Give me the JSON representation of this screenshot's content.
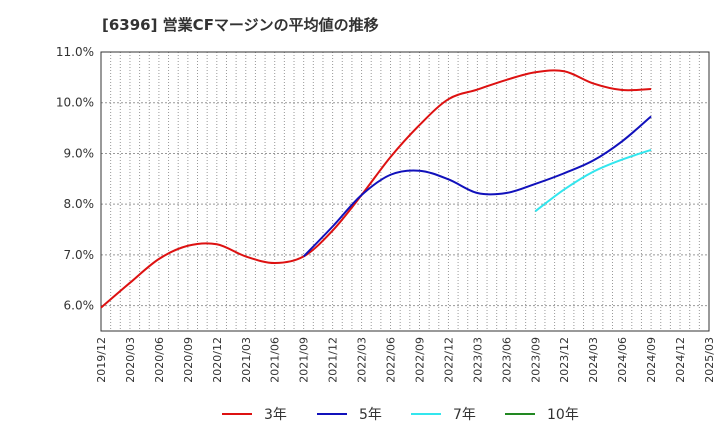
{
  "chart_data": {
    "type": "line",
    "title": "[6396]  営業CFマージンの平均値の推移",
    "xlabel": "",
    "ylabel": "",
    "x": [
      "2019/12",
      "2020/03",
      "2020/06",
      "2020/09",
      "2020/12",
      "2021/03",
      "2021/06",
      "2021/09",
      "2021/12",
      "2022/03",
      "2022/06",
      "2022/09",
      "2022/12",
      "2023/03",
      "2023/06",
      "2023/09",
      "2023/12",
      "2024/03",
      "2024/06",
      "2024/09",
      "2024/12",
      "2025/03"
    ],
    "yticks": [
      "6.0%",
      "7.0%",
      "8.0%",
      "9.0%",
      "10.0%",
      "11.0%"
    ],
    "ylim": [
      5.5,
      11.0
    ],
    "grid": true,
    "legend_position": "bottom-center",
    "series": [
      {
        "name": "3年",
        "color": "#dd1111",
        "values": [
          5.96,
          6.45,
          6.92,
          7.18,
          7.21,
          6.97,
          6.84,
          6.97,
          7.48,
          8.18,
          8.93,
          9.56,
          10.07,
          10.26,
          10.45,
          10.6,
          10.62,
          10.38,
          10.25,
          10.27,
          null,
          null
        ]
      },
      {
        "name": "5年",
        "color": "#1111bb",
        "values": [
          null,
          null,
          null,
          null,
          null,
          null,
          null,
          6.97,
          7.56,
          8.18,
          8.58,
          8.66,
          8.49,
          8.22,
          8.22,
          8.4,
          8.61,
          8.86,
          9.24,
          9.73,
          null,
          null
        ]
      },
      {
        "name": "7年",
        "color": "#33e6ee",
        "values": [
          null,
          null,
          null,
          null,
          null,
          null,
          null,
          null,
          null,
          null,
          null,
          null,
          null,
          null,
          null,
          7.86,
          8.29,
          8.64,
          8.88,
          9.07,
          null,
          null
        ]
      },
      {
        "name": "10年",
        "color": "#228822",
        "values": [
          null,
          null,
          null,
          null,
          null,
          null,
          null,
          null,
          null,
          null,
          null,
          null,
          null,
          null,
          null,
          null,
          null,
          null,
          null,
          null,
          null,
          null
        ]
      }
    ]
  }
}
